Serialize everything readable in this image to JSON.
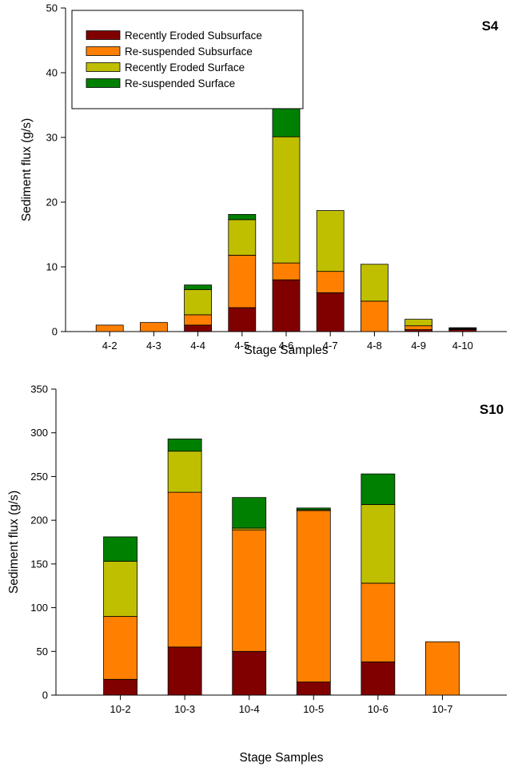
{
  "colors": {
    "Recently Eroded Subsurface": "#800000",
    "Re-suspended Subsurface": "#ff8000",
    "Recently Eroded Surface": "#bfbf00",
    "Re-suspended Surface": "#008000"
  },
  "chart_data": [
    {
      "type": "bar",
      "stacked": true,
      "label": "S4",
      "xlabel": "Stage Samples",
      "ylabel": "Sediment flux (g/s)",
      "ylim": [
        0,
        50
      ],
      "yticks": [
        0,
        10,
        20,
        30,
        40,
        50
      ],
      "legend": "top-left",
      "grid": false,
      "categories": [
        "4-2",
        "4-3",
        "4-4",
        "4-5",
        "4-6",
        "4-7",
        "4-8",
        "4-9",
        "4-10"
      ],
      "series": [
        {
          "name": "Recently Eroded Subsurface",
          "values": [
            0,
            0,
            1.0,
            3.7,
            8.0,
            6.0,
            0,
            0.3,
            0.3
          ]
        },
        {
          "name": "Re-suspended Subsurface",
          "values": [
            1.0,
            1.4,
            1.6,
            8.1,
            2.6,
            3.3,
            4.7,
            0.6,
            0.1
          ]
        },
        {
          "name": "Recently Eroded Surface",
          "values": [
            0,
            0,
            3.9,
            5.5,
            19.5,
            9.4,
            5.7,
            1.0,
            0.1
          ]
        },
        {
          "name": "Re-suspended Surface",
          "values": [
            0,
            0,
            0.7,
            0.8,
            6.1,
            0,
            0,
            0,
            0.1
          ]
        }
      ]
    },
    {
      "type": "bar",
      "stacked": true,
      "label": "S10",
      "xlabel": "Stage Samples",
      "ylabel": "Sediment flux (g/s)",
      "ylim": [
        0,
        350
      ],
      "yticks": [
        0,
        50,
        100,
        150,
        200,
        250,
        300,
        350
      ],
      "grid": false,
      "categories": [
        "10-2",
        "10-3",
        "10-4",
        "10-5",
        "10-6",
        "10-7"
      ],
      "series": [
        {
          "name": "Recently Eroded Subsurface",
          "values": [
            18,
            55,
            50,
            15,
            38,
            0
          ]
        },
        {
          "name": "Re-suspended Subsurface",
          "values": [
            72,
            177,
            139,
            196,
            90,
            61
          ]
        },
        {
          "name": "Recently Eroded Surface",
          "values": [
            63,
            47,
            2,
            1,
            90,
            0
          ]
        },
        {
          "name": "Re-suspended Surface",
          "values": [
            28,
            14,
            35,
            2,
            35,
            0
          ]
        }
      ]
    }
  ]
}
